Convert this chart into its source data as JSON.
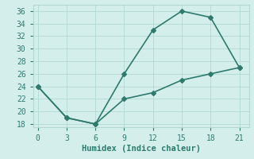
{
  "x_upper": [
    0,
    3,
    6,
    9,
    12,
    15,
    18,
    21
  ],
  "y_upper": [
    24,
    19,
    18,
    26,
    33,
    36,
    35,
    27
  ],
  "x_lower": [
    0,
    3,
    6,
    9,
    12,
    15,
    18,
    21
  ],
  "y_lower": [
    24,
    19,
    18,
    22,
    23,
    25,
    26,
    27
  ],
  "line_color": "#2e7b6e",
  "bg_color": "#d4eeec",
  "grid_color": "#b2d8d4",
  "xlabel": "Humidex (Indice chaleur)",
  "xticks": [
    0,
    3,
    6,
    9,
    12,
    15,
    18,
    21
  ],
  "yticks": [
    18,
    20,
    22,
    24,
    26,
    28,
    30,
    32,
    34,
    36
  ],
  "xlim": [
    -0.5,
    22
  ],
  "ylim": [
    17.5,
    37
  ],
  "marker": "D",
  "markersize": 3,
  "linewidth": 1.2,
  "xlabel_fontsize": 7.5,
  "tick_fontsize": 7
}
